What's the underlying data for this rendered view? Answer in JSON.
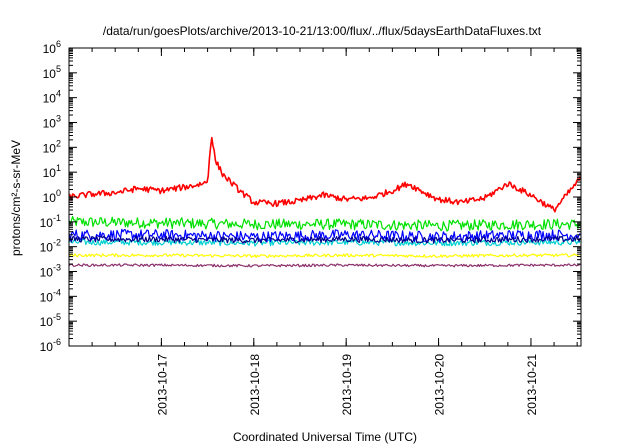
{
  "chart_data": {
    "type": "line",
    "title": "/data/run/goesPlots/archive/2013-10-21/13:00/flux/../flux/5daysEarthDataFluxes.txt",
    "xlabel": "Coordinated Universal Time (UTC)",
    "ylabel": "protons/cm²-s-sr-MeV",
    "y_scale": "log",
    "ylim": [
      1e-06,
      1000000.0
    ],
    "y_ticks": [
      {
        "value": 1e-06,
        "base": "10",
        "exp": "-6"
      },
      {
        "value": 1e-05,
        "base": "10",
        "exp": "-5"
      },
      {
        "value": 0.0001,
        "base": "10",
        "exp": "-4"
      },
      {
        "value": 0.001,
        "base": "10",
        "exp": "-3"
      },
      {
        "value": 0.01,
        "base": "10",
        "exp": "-2"
      },
      {
        "value": 0.1,
        "base": "10",
        "exp": "-1"
      },
      {
        "value": 1,
        "base": "10",
        "exp": "0"
      },
      {
        "value": 10.0,
        "base": "10",
        "exp": "1"
      },
      {
        "value": 100.0,
        "base": "10",
        "exp": "2"
      },
      {
        "value": 1000.0,
        "base": "10",
        "exp": "3"
      },
      {
        "value": 10000.0,
        "base": "10",
        "exp": "4"
      },
      {
        "value": 100000.0,
        "base": "10",
        "exp": "5"
      },
      {
        "value": 1000000.0,
        "base": "10",
        "exp": "6"
      }
    ],
    "xlim": [
      "2013-10-16T00:00",
      "2013-10-21T13:00"
    ],
    "x_ticks": [
      "2013-10-17",
      "2013-10-18",
      "2013-10-19",
      "2013-10-20",
      "2013-10-21"
    ],
    "grid": false,
    "legend": "none",
    "series": [
      {
        "color": "#ff0000",
        "x": [
          "2013-10-16T00:00",
          "2013-10-16T06:00",
          "2013-10-16T12:00",
          "2013-10-16T18:00",
          "2013-10-17T00:00",
          "2013-10-17T06:00",
          "2013-10-17T09:00",
          "2013-10-17T12:00",
          "2013-10-17T13:00",
          "2013-10-17T14:00",
          "2013-10-17T16:00",
          "2013-10-17T20:00",
          "2013-10-18T00:00",
          "2013-10-18T06:00",
          "2013-10-18T12:00",
          "2013-10-18T18:00",
          "2013-10-19T00:00",
          "2013-10-19T06:00",
          "2013-10-19T12:00",
          "2013-10-19T16:00",
          "2013-10-19T20:00",
          "2013-10-20T00:00",
          "2013-10-20T06:00",
          "2013-10-20T12:00",
          "2013-10-20T18:00",
          "2013-10-21T00:00",
          "2013-10-21T06:00",
          "2013-10-21T13:00"
        ],
        "values": [
          1.0,
          1.3,
          1.5,
          2.2,
          1.8,
          2.5,
          3.0,
          4.0,
          350,
          30,
          8.0,
          2.0,
          0.6,
          0.55,
          0.7,
          1.2,
          0.8,
          0.9,
          1.8,
          3.5,
          1.6,
          0.8,
          0.6,
          0.9,
          3.5,
          1.2,
          0.3,
          6.0
        ]
      },
      {
        "color": "#00e000",
        "x": [
          "2013-10-16T00:00",
          "2013-10-17T00:00",
          "2013-10-18T00:00",
          "2013-10-19T00:00",
          "2013-10-20T00:00",
          "2013-10-21T00:00",
          "2013-10-21T13:00"
        ],
        "values": [
          0.1,
          0.09,
          0.08,
          0.08,
          0.07,
          0.08,
          0.08
        ]
      },
      {
        "color": "#0000ff",
        "x": [
          "2013-10-16T00:00",
          "2013-10-17T00:00",
          "2013-10-18T00:00",
          "2013-10-19T00:00",
          "2013-10-20T00:00",
          "2013-10-21T00:00",
          "2013-10-21T13:00"
        ],
        "values": [
          0.03,
          0.03,
          0.025,
          0.03,
          0.025,
          0.03,
          0.03
        ]
      },
      {
        "color": "#00d0d0",
        "x": [
          "2013-10-16T00:00",
          "2013-10-17T00:00",
          "2013-10-18T00:00",
          "2013-10-19T00:00",
          "2013-10-20T00:00",
          "2013-10-21T00:00",
          "2013-10-21T13:00"
        ],
        "values": [
          0.015,
          0.015,
          0.014,
          0.015,
          0.014,
          0.015,
          0.015
        ]
      },
      {
        "color": "#00008b",
        "x": [
          "2013-10-16T00:00",
          "2013-10-17T00:00",
          "2013-10-18T00:00",
          "2013-10-19T00:00",
          "2013-10-20T00:00",
          "2013-10-21T00:00",
          "2013-10-21T13:00"
        ],
        "values": [
          0.02,
          0.02,
          0.018,
          0.02,
          0.018,
          0.02,
          0.02
        ]
      },
      {
        "color": "#ffff00",
        "x": [
          "2013-10-16T00:00",
          "2013-10-17T00:00",
          "2013-10-18T00:00",
          "2013-10-19T00:00",
          "2013-10-20T00:00",
          "2013-10-21T00:00",
          "2013-10-21T13:00"
        ],
        "values": [
          0.0045,
          0.0045,
          0.0042,
          0.0045,
          0.0042,
          0.0045,
          0.0045
        ]
      },
      {
        "color": "#8b2f6b",
        "x": [
          "2013-10-16T00:00",
          "2013-10-17T00:00",
          "2013-10-18T00:00",
          "2013-10-19T00:00",
          "2013-10-20T00:00",
          "2013-10-21T00:00",
          "2013-10-21T13:00"
        ],
        "values": [
          0.0018,
          0.0018,
          0.0017,
          0.0018,
          0.0017,
          0.0018,
          0.0018
        ]
      }
    ]
  }
}
